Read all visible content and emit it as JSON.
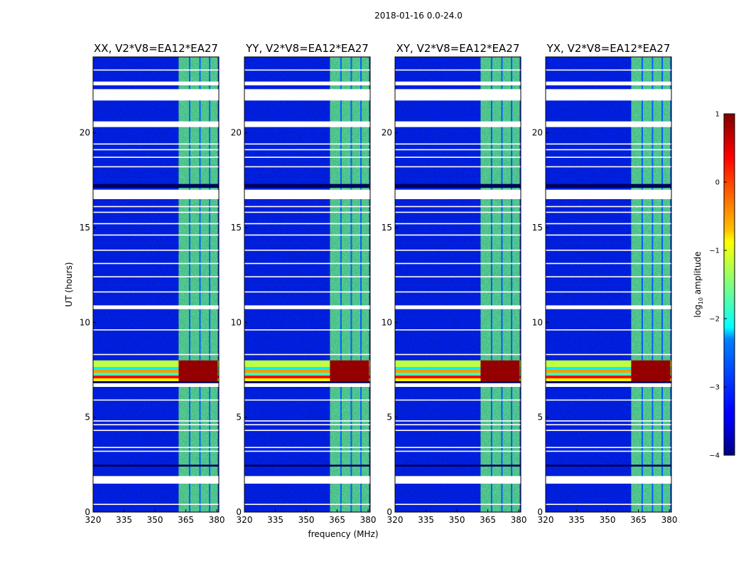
{
  "chart_data": {
    "type": "heatmap",
    "suptitle": "2018-01-16 0.0-24.0",
    "xlabel": "frequency (MHz)",
    "ylabel": "UT (hours)",
    "xlim": [
      320,
      381
    ],
    "ylim": [
      0,
      24
    ],
    "xticks": [
      320,
      335,
      350,
      365,
      380
    ],
    "yticks": [
      0,
      5,
      10,
      15,
      20
    ],
    "panels": [
      {
        "title": "XX, V2*V8=EA12*EA27",
        "polarization": "XX"
      },
      {
        "title": "YY, V2*V8=EA12*EA27",
        "polarization": "YY"
      },
      {
        "title": "XY, V2*V8=EA12*EA27",
        "polarization": "XY"
      },
      {
        "title": "YX, V2*V8=EA12*EA27",
        "polarization": "YX"
      }
    ],
    "colorbar": {
      "label": "log",
      "label_sub": "10",
      "label_rest": " amplitude",
      "range": [
        -4,
        1
      ],
      "ticks": [
        1,
        0,
        -1,
        -2,
        -3,
        -4
      ],
      "tick_labels": [
        "1",
        "0",
        "−1",
        "−2",
        "−3",
        "−4"
      ],
      "colormap": "jet"
    },
    "features": {
      "active_band_mhz": [
        361.5,
        380.5
      ],
      "active_band_level": -1.6,
      "background_level": -3.2,
      "rfi_band_hours": [
        6.9,
        8.0
      ],
      "rfi_band_level": 0.9,
      "flagged_rows_hours": [
        [
          1.5,
          1.9
        ],
        [
          6.6,
          6.8
        ],
        [
          10.7,
          10.9
        ],
        [
          16.5,
          17.0
        ],
        [
          20.3,
          20.6
        ],
        [
          21.7,
          22.3
        ],
        [
          22.5,
          22.7
        ]
      ],
      "dark_rows_hours": [
        [
          17.1,
          17.3
        ],
        [
          6.8,
          6.9
        ],
        [
          2.4,
          2.5
        ]
      ]
    }
  }
}
